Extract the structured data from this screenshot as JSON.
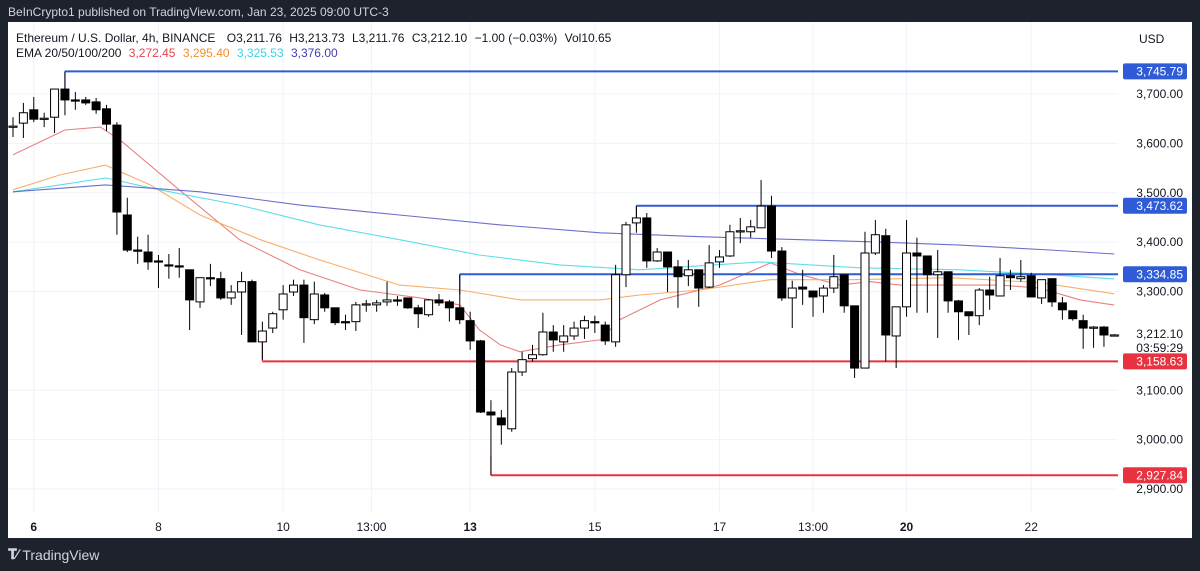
{
  "published": "BeInCrypto1 published on TradingView.com, Jan 23, 2025 09:00 UTC-3",
  "legend": {
    "symbol": "Ethereum / U.S. Dollar, 4h, BINANCE",
    "open": "O3,211.76",
    "high": "H3,213.73",
    "low": "L3,211.76",
    "close": "C3,212.10",
    "change": "−1.00 (−0.03%)",
    "volume": "Vol10.65",
    "ema_label": "EMA 20/50/100/200",
    "ema_values": [
      "3,272.45",
      "3,295.40",
      "3,325.53",
      "3,376.00"
    ]
  },
  "currency": "USD",
  "footer": {
    "brand": "TradingView",
    "logo": "TV"
  },
  "colors": {
    "up_body": "#ffffff",
    "down_body": "#000000",
    "ema20": "#e57373",
    "ema50": "#f5a65b",
    "ema100": "#4dd9e8",
    "ema200": "#5c5fc4",
    "resistance": "#2f5cd6",
    "support": "#e8323f"
  },
  "chart_data": {
    "type": "candlestick",
    "interval": "4h",
    "y_range": [
      2870,
      3790
    ],
    "grid": true,
    "y_ticks": [
      "3,700.00",
      "3,600.00",
      "3,500.00",
      "3,400.00",
      "3,300.00",
      "3,100.00",
      "3,000.00",
      "2,900.00"
    ],
    "y_tick_values": [
      3700,
      3600,
      3500,
      3400,
      3300,
      3100,
      3000,
      2900
    ],
    "x_ticks": [
      {
        "label": "6",
        "candle": 2,
        "bold": true
      },
      {
        "label": "8",
        "candle": 14,
        "bold": false
      },
      {
        "label": "10",
        "candle": 26,
        "bold": false
      },
      {
        "label": "13:00",
        "candle": 34.5,
        "bold": false
      },
      {
        "label": "13",
        "candle": 44,
        "bold": true
      },
      {
        "label": "15",
        "candle": 56,
        "bold": false
      },
      {
        "label": "17",
        "candle": 68,
        "bold": false
      },
      {
        "label": "13:00",
        "candle": 77,
        "bold": false
      },
      {
        "label": "20",
        "candle": 86,
        "bold": true
      },
      {
        "label": "22",
        "candle": 98,
        "bold": false
      }
    ],
    "ohlc": [
      [
        3633,
        3653,
        3613,
        3635
      ],
      [
        3641,
        3682,
        3611,
        3662
      ],
      [
        3668,
        3694,
        3643,
        3649
      ],
      [
        3649,
        3662,
        3633,
        3651
      ],
      [
        3653,
        3710,
        3621,
        3710
      ],
      [
        3710,
        3745.79,
        3657,
        3688
      ],
      [
        3688,
        3704,
        3668,
        3686
      ],
      [
        3688,
        3694,
        3678,
        3682
      ],
      [
        3684,
        3692,
        3660,
        3668
      ],
      [
        3670,
        3678,
        3625,
        3639
      ],
      [
        3637,
        3643,
        3415,
        3461
      ],
      [
        3455,
        3490,
        3380,
        3384
      ],
      [
        3384,
        3411,
        3356,
        3382
      ],
      [
        3380,
        3415,
        3344,
        3360
      ],
      [
        3362,
        3374,
        3307,
        3360
      ],
      [
        3354,
        3376,
        3326,
        3352
      ],
      [
        3352,
        3388,
        3328,
        3350
      ],
      [
        3344,
        3344,
        3222,
        3283
      ],
      [
        3279,
        3328,
        3267,
        3328
      ],
      [
        3328,
        3356,
        3311,
        3326
      ],
      [
        3326,
        3340,
        3283,
        3287
      ],
      [
        3287,
        3313,
        3273,
        3299
      ],
      [
        3299,
        3340,
        3212,
        3320
      ],
      [
        3320,
        3324,
        3198,
        3198
      ],
      [
        3198,
        3239,
        3162,
        3220
      ],
      [
        3226,
        3259,
        3216,
        3255
      ],
      [
        3263,
        3313,
        3243,
        3295
      ],
      [
        3299,
        3324,
        3291,
        3313
      ],
      [
        3313,
        3324,
        3196,
        3247
      ],
      [
        3243,
        3320,
        3234,
        3295
      ],
      [
        3293,
        3297,
        3259,
        3267
      ],
      [
        3267,
        3267,
        3232,
        3237
      ],
      [
        3239,
        3253,
        3222,
        3237
      ],
      [
        3239,
        3279,
        3220,
        3273
      ],
      [
        3273,
        3283,
        3259,
        3275
      ],
      [
        3273,
        3283,
        3259,
        3277
      ],
      [
        3279,
        3320,
        3271,
        3283
      ],
      [
        3283,
        3291,
        3271,
        3281
      ],
      [
        3287,
        3287,
        3265,
        3267
      ],
      [
        3267,
        3273,
        3226,
        3255
      ],
      [
        3253,
        3285,
        3249,
        3283
      ],
      [
        3283,
        3295,
        3271,
        3277
      ],
      [
        3279,
        3283,
        3239,
        3267
      ],
      [
        3267,
        3334.85,
        3234,
        3243
      ],
      [
        3241,
        3259,
        3182,
        3200
      ],
      [
        3200,
        3202,
        3054,
        3056
      ],
      [
        3056,
        3080,
        2927.84,
        3050
      ],
      [
        3044,
        3060,
        2990,
        3030
      ],
      [
        3022,
        3145,
        3016,
        3137
      ],
      [
        3137,
        3178,
        3129,
        3162
      ],
      [
        3164,
        3192,
        3158,
        3172
      ],
      [
        3172,
        3257,
        3170,
        3218
      ],
      [
        3218,
        3232,
        3178,
        3202
      ],
      [
        3198,
        3232,
        3178,
        3210
      ],
      [
        3210,
        3239,
        3202,
        3226
      ],
      [
        3226,
        3251,
        3204,
        3241
      ],
      [
        3239,
        3251,
        3216,
        3237
      ],
      [
        3232,
        3239,
        3192,
        3200
      ],
      [
        3198,
        3354,
        3188,
        3334
      ],
      [
        3334,
        3441,
        3309,
        3435
      ],
      [
        3439,
        3473.62,
        3419,
        3449
      ],
      [
        3449,
        3459,
        3348,
        3362
      ],
      [
        3362,
        3388,
        3360,
        3380
      ],
      [
        3380,
        3380,
        3299,
        3350
      ],
      [
        3350,
        3364,
        3267,
        3330
      ],
      [
        3332,
        3364,
        3311,
        3344
      ],
      [
        3344,
        3344,
        3269,
        3307
      ],
      [
        3309,
        3394,
        3307,
        3358
      ],
      [
        3360,
        3384,
        3348,
        3370
      ],
      [
        3372,
        3435,
        3370,
        3421
      ],
      [
        3423,
        3449,
        3398,
        3423
      ],
      [
        3421,
        3445,
        3409,
        3431
      ],
      [
        3429,
        3526,
        3429,
        3473
      ],
      [
        3473,
        3494,
        3368,
        3382
      ],
      [
        3382,
        3390,
        3281,
        3287
      ],
      [
        3287,
        3322,
        3226,
        3307
      ],
      [
        3309,
        3344,
        3273,
        3305
      ],
      [
        3301,
        3301,
        3249,
        3289
      ],
      [
        3291,
        3313,
        3257,
        3307
      ],
      [
        3307,
        3374,
        3297,
        3330
      ],
      [
        3334,
        3334,
        3257,
        3271
      ],
      [
        3271,
        3271,
        3125,
        3145
      ],
      [
        3145,
        3421,
        3145,
        3378
      ],
      [
        3378,
        3445,
        3374,
        3415
      ],
      [
        3413,
        3427,
        3158,
        3212
      ],
      [
        3210,
        3269,
        3145,
        3269
      ],
      [
        3269,
        3445,
        3249,
        3378
      ],
      [
        3378,
        3409,
        3257,
        3372
      ],
      [
        3372,
        3372,
        3257,
        3334
      ],
      [
        3334,
        3384,
        3206,
        3340
      ],
      [
        3340,
        3340,
        3257,
        3281
      ],
      [
        3281,
        3283,
        3202,
        3259
      ],
      [
        3259,
        3259,
        3212,
        3251
      ],
      [
        3251,
        3307,
        3232,
        3303
      ],
      [
        3303,
        3330,
        3263,
        3293
      ],
      [
        3291,
        3368,
        3291,
        3332
      ],
      [
        3332,
        3344,
        3303,
        3328
      ],
      [
        3326,
        3364,
        3320,
        3330
      ],
      [
        3332,
        3338,
        3289,
        3289
      ],
      [
        3287,
        3324,
        3275,
        3324
      ],
      [
        3326,
        3326,
        3269,
        3279
      ],
      [
        3277,
        3289,
        3243,
        3263
      ],
      [
        3261,
        3261,
        3241,
        3245
      ],
      [
        3241,
        3253,
        3184,
        3226
      ],
      [
        3226,
        3230,
        3186,
        3228
      ],
      [
        3228,
        3230,
        3188,
        3212
      ],
      [
        3211.76,
        3213.73,
        3211.76,
        3212.1
      ]
    ],
    "ema": [
      {
        "name": "EMA 20",
        "color_key": "ema20",
        "points": [
          [
            0,
            3577
          ],
          [
            5,
            3627
          ],
          [
            8.4,
            3633
          ],
          [
            10.3,
            3607
          ],
          [
            16,
            3506
          ],
          [
            21.8,
            3405
          ],
          [
            27.6,
            3344
          ],
          [
            33.4,
            3303
          ],
          [
            39.2,
            3287
          ],
          [
            43,
            3273
          ],
          [
            44.9,
            3222
          ],
          [
            46.9,
            3192
          ],
          [
            48.8,
            3178
          ],
          [
            52.6,
            3192
          ],
          [
            56.5,
            3202
          ],
          [
            58.4,
            3243
          ],
          [
            62.3,
            3283
          ],
          [
            68,
            3313
          ],
          [
            72.9,
            3358
          ],
          [
            75.8,
            3334
          ],
          [
            79.6,
            3313
          ],
          [
            82.5,
            3320
          ],
          [
            85.4,
            3313
          ],
          [
            90.2,
            3313
          ],
          [
            95,
            3313
          ],
          [
            98.8,
            3307
          ],
          [
            102.7,
            3283
          ],
          [
            106,
            3272.45
          ]
        ]
      },
      {
        "name": "EMA 50",
        "color_key": "ema50",
        "points": [
          [
            0,
            3506
          ],
          [
            4.5,
            3536
          ],
          [
            8.9,
            3556
          ],
          [
            13.2,
            3516
          ],
          [
            18,
            3455
          ],
          [
            23.8,
            3405
          ],
          [
            29.5,
            3364
          ],
          [
            37.2,
            3313
          ],
          [
            43,
            3303
          ],
          [
            48.8,
            3283
          ],
          [
            56.5,
            3283
          ],
          [
            60.3,
            3293
          ],
          [
            66.1,
            3303
          ],
          [
            72.9,
            3324
          ],
          [
            80.6,
            3324
          ],
          [
            90.2,
            3328
          ],
          [
            98.8,
            3318
          ],
          [
            106,
            3295.4
          ]
        ]
      },
      {
        "name": "EMA 100",
        "color_key": "ema100",
        "points": [
          [
            0,
            3502
          ],
          [
            4.5,
            3516
          ],
          [
            8.9,
            3530
          ],
          [
            14.1,
            3506
          ],
          [
            21.8,
            3475
          ],
          [
            29.5,
            3435
          ],
          [
            37.2,
            3405
          ],
          [
            44.9,
            3374
          ],
          [
            52.6,
            3354
          ],
          [
            60.3,
            3344
          ],
          [
            71.9,
            3360
          ],
          [
            81.5,
            3348
          ],
          [
            91.1,
            3344
          ],
          [
            99.8,
            3334
          ],
          [
            106,
            3325.53
          ]
        ]
      },
      {
        "name": "EMA 200",
        "color_key": "ema200",
        "points": [
          [
            0,
            3502
          ],
          [
            8.9,
            3516
          ],
          [
            18,
            3502
          ],
          [
            27.6,
            3475
          ],
          [
            37.2,
            3455
          ],
          [
            46.9,
            3435
          ],
          [
            56.5,
            3419
          ],
          [
            66.1,
            3411
          ],
          [
            75.8,
            3405
          ],
          [
            83.4,
            3400
          ],
          [
            91.1,
            3394
          ],
          [
            99.8,
            3384
          ],
          [
            106,
            3376.0
          ]
        ]
      }
    ],
    "levels": [
      {
        "value": 3745.79,
        "label": "3,745.79",
        "from_candle": 5,
        "color_key": "resistance"
      },
      {
        "value": 3473.62,
        "label": "3,473.62",
        "from_candle": 60,
        "color_key": "resistance"
      },
      {
        "value": 3334.85,
        "label": "3,334.85",
        "from_candle": 43,
        "color_key": "resistance"
      },
      {
        "value": 3158.63,
        "label": "3,158.63",
        "from_candle": 24,
        "color_key": "support"
      },
      {
        "value": 2927.84,
        "label": "2,927.84",
        "from_candle": 46,
        "color_key": "support"
      }
    ],
    "last_price": {
      "value": 3212.1,
      "label": "3,212.10",
      "countdown": "03:59:29"
    }
  }
}
